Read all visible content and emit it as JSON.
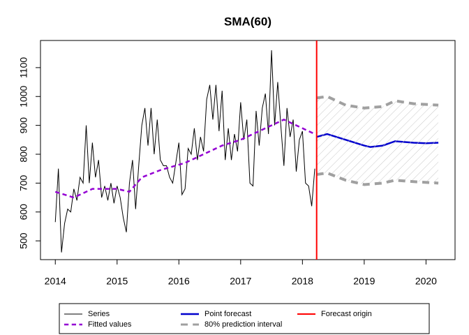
{
  "chart_data": {
    "type": "line",
    "title": "SMA(60)",
    "xlim": [
      2013.76,
      2020.47
    ],
    "ylim": [
      435,
      1194
    ],
    "xticks": [
      2014,
      2015,
      2016,
      2017,
      2018,
      2019,
      2020
    ],
    "yticks": [
      500,
      600,
      700,
      800,
      900,
      1000,
      1100
    ],
    "series": [
      {
        "name": "Series",
        "color": "#000000",
        "kind": "line",
        "lwd": 1,
        "dash": "solid",
        "x": [
          2014.0,
          2014.05,
          2014.1,
          2014.15,
          2014.2,
          2014.25,
          2014.3,
          2014.35,
          2014.4,
          2014.45,
          2014.5,
          2014.55,
          2014.6,
          2014.65,
          2014.7,
          2014.75,
          2014.8,
          2014.85,
          2014.9,
          2014.95,
          2015.0,
          2015.05,
          2015.1,
          2015.15,
          2015.2,
          2015.25,
          2015.3,
          2015.35,
          2015.4,
          2015.45,
          2015.5,
          2015.55,
          2015.6,
          2015.65,
          2015.7,
          2015.75,
          2015.8,
          2015.85,
          2015.9,
          2015.95,
          2016.0,
          2016.05,
          2016.1,
          2016.15,
          2016.2,
          2016.25,
          2016.3,
          2016.35,
          2016.4,
          2016.45,
          2016.5,
          2016.55,
          2016.6,
          2016.65,
          2016.7,
          2016.75,
          2016.8,
          2016.85,
          2016.9,
          2016.95,
          2017.0,
          2017.05,
          2017.1,
          2017.15,
          2017.2,
          2017.25,
          2017.3,
          2017.35,
          2017.4,
          2017.45,
          2017.5,
          2017.55,
          2017.6,
          2017.65,
          2017.7,
          2017.75,
          2017.8,
          2017.85,
          2017.9,
          2017.95,
          2018.0,
          2018.05,
          2018.1,
          2018.15,
          2018.2
        ],
        "values": [
          565,
          750,
          460,
          560,
          610,
          600,
          680,
          640,
          720,
          700,
          900,
          700,
          840,
          720,
          780,
          650,
          690,
          640,
          700,
          630,
          690,
          650,
          580,
          530,
          700,
          780,
          610,
          760,
          900,
          960,
          830,
          960,
          800,
          920,
          780,
          760,
          760,
          720,
          700,
          770,
          840,
          660,
          680,
          820,
          800,
          890,
          780,
          860,
          810,
          990,
          1040,
          920,
          1040,
          880,
          1020,
          780,
          890,
          780,
          870,
          810,
          980,
          850,
          920,
          700,
          690,
          950,
          830,
          960,
          1010,
          870,
          1160,
          900,
          1050,
          900,
          760,
          960,
          860,
          920,
          740,
          850,
          880,
          700,
          690,
          620,
          750
        ]
      },
      {
        "name": "Fitted values",
        "color": "#9400d3",
        "kind": "line",
        "lwd": 2.5,
        "dash": "dashed",
        "x": [
          2014.0,
          2014.3,
          2014.6,
          2015.0,
          2015.2,
          2015.4,
          2015.7,
          2016.1,
          2016.4,
          2016.7,
          2017.0,
          2017.2,
          2017.5,
          2017.7,
          2017.9,
          2018.2
        ],
        "values": [
          670,
          650,
          680,
          680,
          670,
          720,
          745,
          770,
          800,
          830,
          850,
          870,
          900,
          920,
          900,
          870
        ]
      },
      {
        "name": "Point forecast",
        "color": "#0000cd",
        "kind": "line",
        "lwd": 2.5,
        "dash": "solid",
        "x": [
          2018.23,
          2018.4,
          2018.7,
          2019.0,
          2019.1,
          2019.3,
          2019.5,
          2019.8,
          2020.0,
          2020.2
        ],
        "values": [
          860,
          870,
          850,
          830,
          825,
          830,
          845,
          840,
          838,
          840
        ]
      },
      {
        "name": "80% prediction interval",
        "color": "#a0a0a0",
        "kind": "interval",
        "lwd": 4,
        "dash": "dashed",
        "x": [
          2018.23,
          2018.4,
          2018.7,
          2019.0,
          2019.3,
          2019.5,
          2019.8,
          2020.2
        ],
        "upper": [
          995,
          1000,
          970,
          960,
          965,
          985,
          975,
          970
        ],
        "lower": [
          730,
          735,
          710,
          695,
          700,
          710,
          705,
          700
        ]
      },
      {
        "name": "Forecast origin",
        "color": "#ff0000",
        "kind": "vline",
        "lwd": 2,
        "dash": "solid",
        "x": [
          2018.23
        ]
      }
    ]
  }
}
